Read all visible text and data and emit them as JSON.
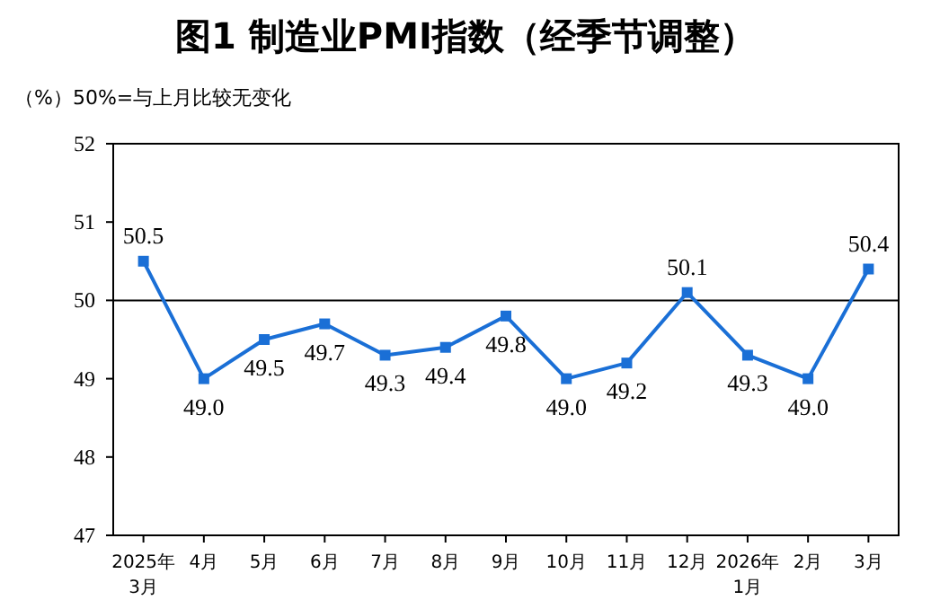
{
  "chart_data": {
    "type": "line",
    "title": "图1  制造业PMI指数（经季节调整）",
    "ylabel": "（%）50%=与上月比较无变化",
    "categories": [
      "2025年\n3月",
      "4月",
      "5月",
      "6月",
      "7月",
      "8月",
      "9月",
      "10月",
      "11月",
      "12月",
      "2026年\n1月",
      "2月",
      "3月"
    ],
    "series": [
      {
        "color": "#1a6fd6",
        "values": [
          50.5,
          49.0,
          49.5,
          49.7,
          49.3,
          49.4,
          49.8,
          49.0,
          49.2,
          50.1,
          49.3,
          49.0,
          50.4
        ],
        "value_labels": [
          "50.5",
          "49.0",
          "49.5",
          "49.7",
          "49.3",
          "49.4",
          "49.8",
          "49.0",
          "49.2",
          "50.1",
          "49.3",
          "49.0",
          "50.4"
        ]
      }
    ],
    "ylim": [
      47,
      52
    ],
    "yticks": [
      47,
      48,
      49,
      50,
      51,
      52
    ],
    "ref_lines": [
      {
        "axis": "y",
        "value": 50,
        "color": "#000000"
      }
    ],
    "marker": "square",
    "grid": false
  }
}
